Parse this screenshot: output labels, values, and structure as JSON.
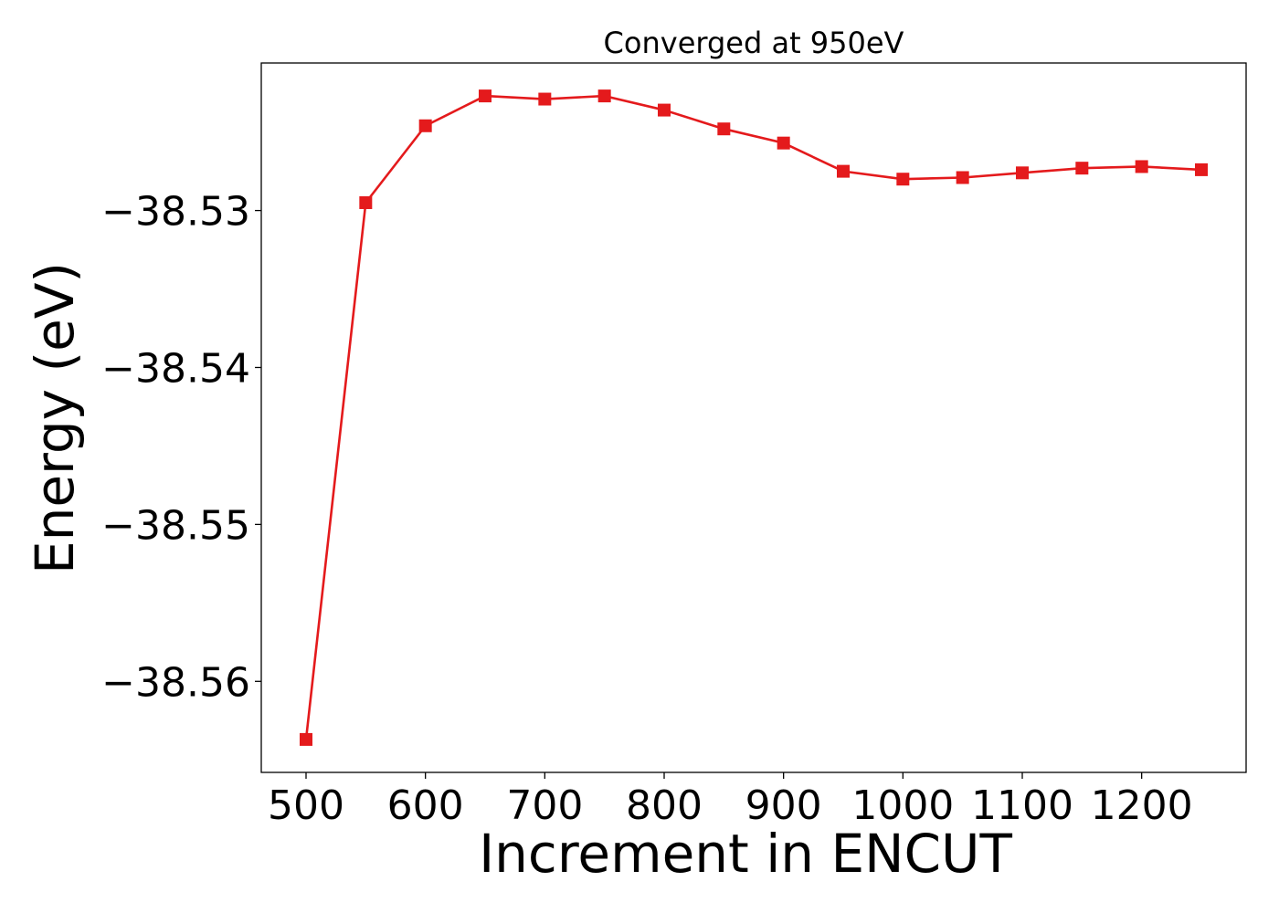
{
  "chart_data": {
    "type": "line",
    "title": "Converged at 950eV",
    "xlabel": "Increment in ENCUT",
    "ylabel": "Energy (eV)",
    "x": [
      500,
      550,
      600,
      650,
      700,
      750,
      800,
      850,
      900,
      950,
      1000,
      1050,
      1100,
      1150,
      1200,
      1250
    ],
    "series": [
      {
        "values": [
          -38.5637,
          -38.5295,
          -38.5246,
          -38.5227,
          -38.5229,
          -38.5227,
          -38.5236,
          -38.5248,
          -38.5257,
          -38.5275,
          -38.528,
          -38.5279,
          -38.5276,
          -38.5273,
          -38.5272,
          -38.5274
        ],
        "color": "#e41a1c",
        "marker": "square"
      }
    ],
    "xticks": [
      500,
      600,
      700,
      800,
      900,
      1000,
      1100,
      1200
    ],
    "xtick_labels": [
      "500",
      "600",
      "700",
      "800",
      "900",
      "1000",
      "1100",
      "1200"
    ],
    "yticks": [
      -38.53,
      -38.54,
      -38.55,
      -38.56
    ],
    "ytick_labels": [
      "−38.53",
      "−38.54",
      "−38.55",
      "−38.56"
    ],
    "xlim": [
      462.5,
      1287.5
    ],
    "ylim": [
      -38.5658,
      -38.5206
    ],
    "grid": false,
    "legend": "none"
  }
}
